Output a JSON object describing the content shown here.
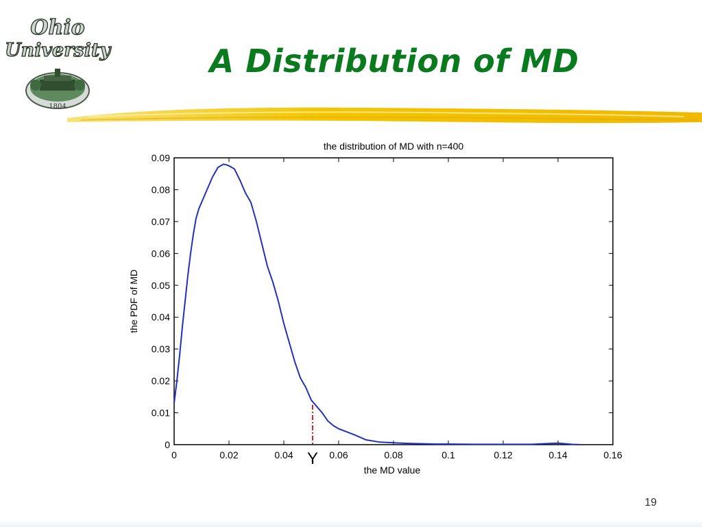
{
  "slide": {
    "title": "A Distribution of MD",
    "page_number": "19",
    "accent_color": "#0a7a1e",
    "stroke_color": "#f3c500"
  },
  "logo": {
    "line1": "Ohio",
    "line2": "University",
    "year": "1804",
    "icon": "ohio-university-seal"
  },
  "chart_data": {
    "type": "line",
    "title": "the distribution of MD with  n=400",
    "xlabel": "the MD value",
    "ylabel": "the PDF of MD",
    "xlim": [
      0,
      0.16
    ],
    "ylim": [
      0,
      0.09
    ],
    "xticks": [
      "0",
      "0.02",
      "0.04",
      "0.06",
      "0.08",
      "0.1",
      "0.12",
      "0.14",
      "0.16"
    ],
    "yticks": [
      "0",
      "0.01",
      "0.02",
      "0.03",
      "0.04",
      "0.05",
      "0.06",
      "0.07",
      "0.08",
      "0.09"
    ],
    "grid": false,
    "line_color": "#1f2fbf",
    "series": [
      {
        "x": [
          0,
          0.001,
          0.002,
          0.003,
          0.004,
          0.005,
          0.006,
          0.007,
          0.008,
          0.009,
          0.01,
          0.012,
          0.014,
          0.016,
          0.017,
          0.018,
          0.019,
          0.02,
          0.021,
          0.022,
          0.024,
          0.026,
          0.028,
          0.03,
          0.032,
          0.034,
          0.036,
          0.038,
          0.04,
          0.042,
          0.044,
          0.046,
          0.048,
          0.05,
          0.052,
          0.054,
          0.056,
          0.058,
          0.06,
          0.063,
          0.066,
          0.07,
          0.075,
          0.08,
          0.085,
          0.09,
          0.095,
          0.1,
          0.11,
          0.12,
          0.13,
          0.14,
          0.145,
          0.148
        ],
        "y": [
          0.013,
          0.02,
          0.028,
          0.037,
          0.045,
          0.053,
          0.06,
          0.066,
          0.071,
          0.074,
          0.076,
          0.08,
          0.084,
          0.087,
          0.0875,
          0.088,
          0.0878,
          0.0875,
          0.087,
          0.0865,
          0.083,
          0.079,
          0.076,
          0.07,
          0.063,
          0.056,
          0.051,
          0.045,
          0.038,
          0.032,
          0.026,
          0.021,
          0.018,
          0.014,
          0.012,
          0.01,
          0.0075,
          0.006,
          0.005,
          0.004,
          0.003,
          0.0015,
          0.0008,
          0.0006,
          0.0004,
          0.0003,
          0.0002,
          0.0002,
          0.0001,
          0.0001,
          0.0001,
          0.0005,
          0.0001,
          0
        ]
      }
    ],
    "marker": {
      "x": 0.0505,
      "y": 0.0125,
      "label": "Y",
      "color": "#cc1111"
    }
  }
}
